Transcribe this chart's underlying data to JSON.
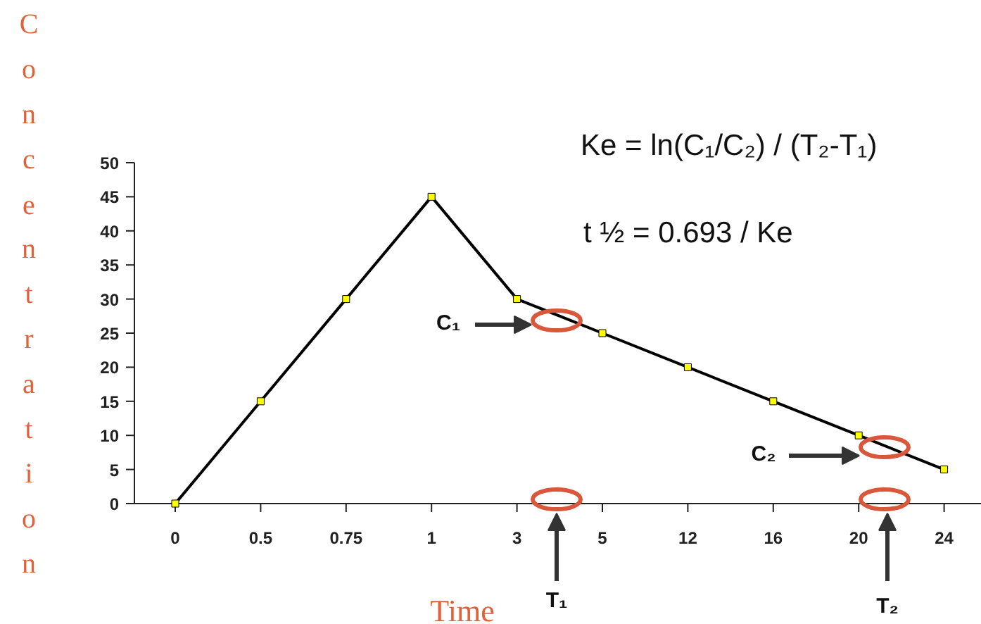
{
  "chart_data": {
    "type": "line",
    "ylabel": "Concentration",
    "xlabel": "Time",
    "categories": [
      "0",
      "0.5",
      "0.75",
      "1",
      "3",
      "5",
      "12",
      "16",
      "20",
      "24"
    ],
    "series": [
      {
        "color": "#000000",
        "values": [
          0,
          15,
          30,
          45,
          30,
          25,
          20,
          15,
          10,
          5
        ]
      }
    ],
    "ylim": [
      0,
      50
    ],
    "yticks": [
      0,
      5,
      10,
      15,
      20,
      25,
      30,
      35,
      40,
      45,
      50
    ],
    "marker": "square",
    "line_style": "solid",
    "grid": false,
    "annotations": [
      "Ke = ln(C₁/C₂) / (T₂-T₁)",
      "t ½ = 0.693 / Ke",
      "C₁",
      "C₂",
      "T₁",
      "T₂"
    ]
  }
}
